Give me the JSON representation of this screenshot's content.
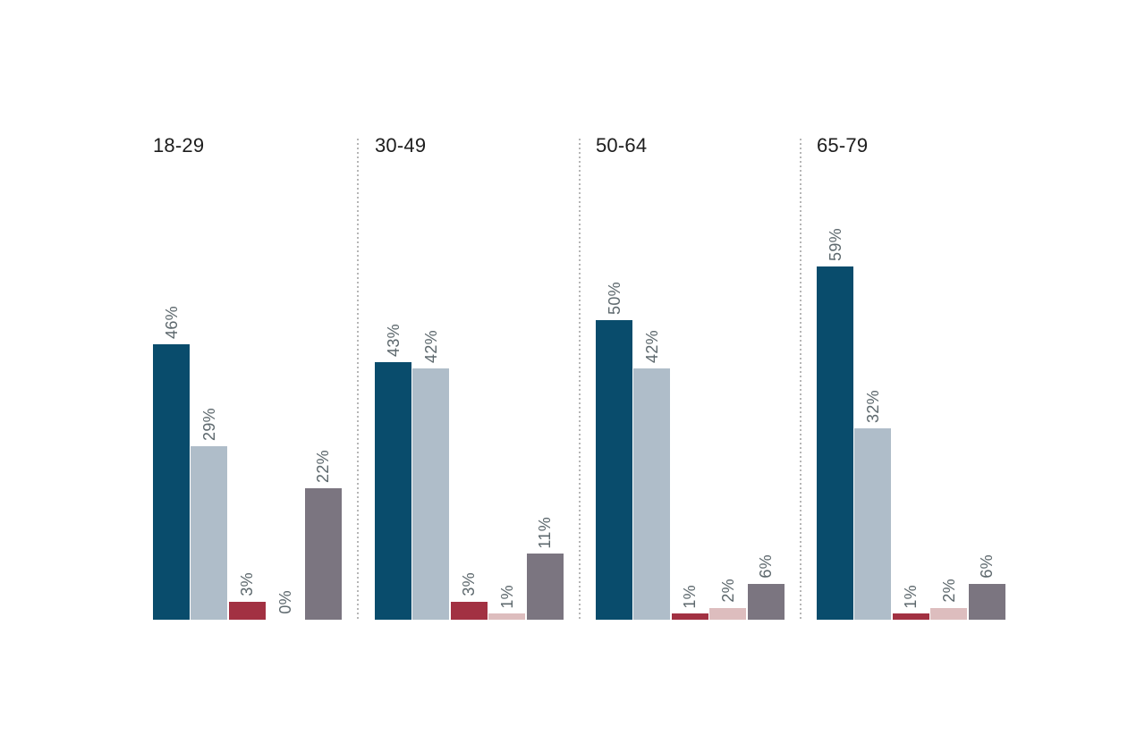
{
  "page": {
    "background": "#FFFFFF"
  },
  "colors": {
    "group_label_text": "#1D1D1D",
    "value_label_text": "#5D686D",
    "group_divider": "#B6B6B6"
  },
  "chart_data": {
    "type": "bar",
    "title": "",
    "categories": [
      "18-29",
      "30-49",
      "50-64",
      "65-79"
    ],
    "series": [
      {
        "name": "series-dark-teal",
        "color": "#094C6C",
        "values": [
          46,
          43,
          50,
          59
        ]
      },
      {
        "name": "series-light-slate",
        "color": "#AFBDC9",
        "values": [
          29,
          42,
          42,
          32
        ]
      },
      {
        "name": "series-dark-red",
        "color": "#A23142",
        "values": [
          3,
          3,
          1,
          1
        ]
      },
      {
        "name": "series-light-pink",
        "color": "#DDBDBE",
        "values": [
          0,
          1,
          2,
          2
        ]
      },
      {
        "name": "series-mauve-gray",
        "color": "#7B7580",
        "values": [
          22,
          11,
          6,
          6
        ]
      }
    ],
    "value_suffix": "%",
    "value_labels": "rotated-90ccw-above-bars",
    "legend": "none",
    "grid": "off",
    "axes": "none",
    "group_dividers": "dotted-vertical",
    "ylim": [
      0,
      60
    ]
  }
}
